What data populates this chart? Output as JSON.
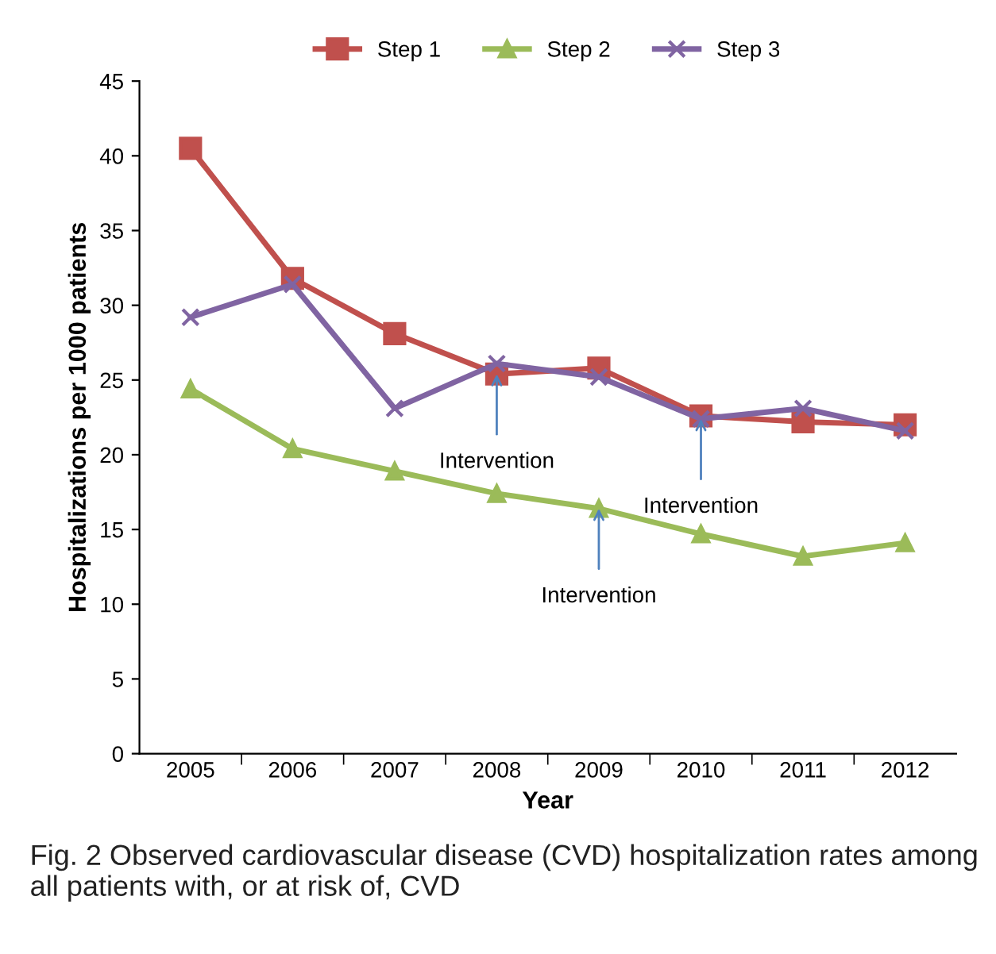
{
  "chart_data": {
    "type": "line",
    "xlabel": "Year",
    "ylabel": "Hospitalizations per 1000 patients",
    "categories": [
      "2005",
      "2006",
      "2007",
      "2008",
      "2009",
      "2010",
      "2011",
      "2012"
    ],
    "series": [
      {
        "name": "Step 1",
        "color": "#c0504d",
        "marker": "square",
        "values": [
          40.5,
          31.8,
          28.1,
          25.4,
          25.8,
          22.6,
          22.2,
          22.0
        ]
      },
      {
        "name": "Step 2",
        "color": "#9bbb59",
        "marker": "triangle",
        "values": [
          24.4,
          20.4,
          18.9,
          17.4,
          16.4,
          14.7,
          13.2,
          14.1
        ]
      },
      {
        "name": "Step 3",
        "color": "#8064a2",
        "marker": "cross",
        "values": [
          29.2,
          31.4,
          23.1,
          26.1,
          25.2,
          22.4,
          23.1,
          21.6
        ]
      }
    ],
    "ylim": [
      0,
      45
    ],
    "yticks": [
      0,
      5,
      10,
      15,
      20,
      25,
      30,
      35,
      40,
      45
    ],
    "grid": false,
    "legend": "top",
    "annotations": [
      {
        "text": "Intervention",
        "x": "2008",
        "y": 25.4
      },
      {
        "text": "Intervention",
        "x": "2010",
        "y": 22.4
      },
      {
        "text": "Intervention",
        "x": "2009",
        "y": 16.4
      },
      "Fig. 2 Observed cardiovascular disease (CVD) hospitalization rates among all patients with, or at risk of, CVD"
    ]
  }
}
